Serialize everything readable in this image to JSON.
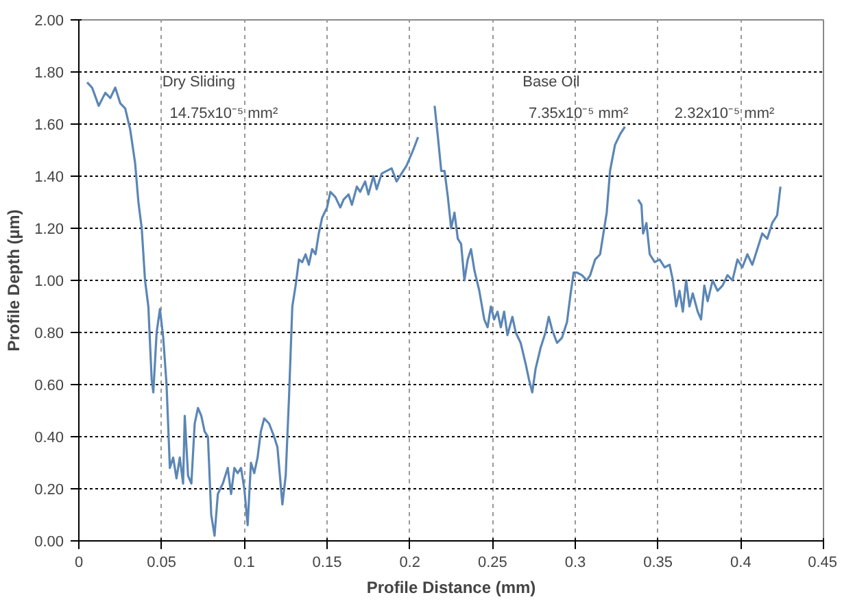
{
  "chart_data": {
    "type": "line",
    "xlabel": "Profile Distance (mm)",
    "ylabel": "Profile Depth (µm)",
    "xlim": [
      0,
      0.45
    ],
    "xticks": [
      0,
      0.05,
      0.1,
      0.15,
      0.2,
      0.25,
      0.3,
      0.35,
      0.4,
      0.45
    ],
    "ylim": [
      0,
      2
    ],
    "yticks": [
      {
        "value": 0,
        "label": "0.00"
      },
      {
        "value": 0.2,
        "label": "0.20"
      },
      {
        "value": 0.4,
        "label": "0.40"
      },
      {
        "value": 0.6,
        "label": "0.60"
      },
      {
        "value": 0.8,
        "label": "0.80"
      },
      {
        "value": 1,
        "label": "1.00"
      },
      {
        "value": 1.2,
        "label": "1.20"
      },
      {
        "value": 1.4,
        "label": "1.40"
      },
      {
        "value": 1.6,
        "label": "1.60"
      },
      {
        "value": 1.8,
        "label": "1.80"
      },
      {
        "value": 2,
        "label": "2.00"
      }
    ],
    "grid": true,
    "marker": "none",
    "line_style": "solid",
    "annotations": [
      "Dry Sliding",
      "14.75x10⁻⁵ mm²",
      "Base Oil",
      "7.35x10⁻⁵ mm²",
      "2.32x10⁻⁵ mm²"
    ],
    "series": [
      {
        "color": "#5b86b5",
        "x": [
          0.005,
          0.008,
          0.012,
          0.016,
          0.019,
          0.022,
          0.025,
          0.028,
          0.031,
          0.034,
          0.036,
          0.038,
          0.04,
          0.042,
          0.044,
          0.045,
          0.047,
          0.049,
          0.051,
          0.053,
          0.055,
          0.057,
          0.059,
          0.061,
          0.063,
          0.064,
          0.066,
          0.068,
          0.07,
          0.072,
          0.074,
          0.076,
          0.078,
          0.08,
          0.082,
          0.084,
          0.087,
          0.09,
          0.092,
          0.094,
          0.096,
          0.098,
          0.1,
          0.102,
          0.104,
          0.106,
          0.108,
          0.11,
          0.112,
          0.115,
          0.118,
          0.12,
          0.123,
          0.125,
          0.127,
          0.129,
          0.131,
          0.133,
          0.135,
          0.137,
          0.139,
          0.141,
          0.143,
          0.145,
          0.147,
          0.15,
          0.152,
          0.155,
          0.158,
          0.16,
          0.163,
          0.165,
          0.168,
          0.17,
          0.173,
          0.175,
          0.178,
          0.18,
          0.183,
          0.186,
          0.189,
          0.192,
          0.195,
          0.198,
          0.202,
          0.205
        ],
        "values": [
          1.76,
          1.74,
          1.67,
          1.72,
          1.7,
          1.74,
          1.68,
          1.66,
          1.58,
          1.45,
          1.3,
          1.2,
          1.0,
          0.9,
          0.62,
          0.57,
          0.8,
          0.89,
          0.78,
          0.6,
          0.28,
          0.32,
          0.24,
          0.32,
          0.22,
          0.48,
          0.25,
          0.22,
          0.45,
          0.51,
          0.48,
          0.42,
          0.4,
          0.1,
          0.02,
          0.18,
          0.22,
          0.28,
          0.18,
          0.28,
          0.26,
          0.28,
          0.2,
          0.06,
          0.3,
          0.26,
          0.32,
          0.42,
          0.47,
          0.45,
          0.4,
          0.36,
          0.14,
          0.25,
          0.55,
          0.9,
          0.98,
          1.08,
          1.07,
          1.1,
          1.06,
          1.12,
          1.1,
          1.18,
          1.24,
          1.28,
          1.34,
          1.32,
          1.28,
          1.31,
          1.33,
          1.29,
          1.36,
          1.34,
          1.38,
          1.33,
          1.4,
          1.35,
          1.41,
          1.42,
          1.43,
          1.38,
          1.41,
          1.44,
          1.5,
          1.55
        ]
      },
      {
        "color": "#5b86b5",
        "x": [
          0.215,
          0.217,
          0.219,
          0.221,
          0.223,
          0.225,
          0.227,
          0.229,
          0.231,
          0.233,
          0.235,
          0.237,
          0.239,
          0.242,
          0.245,
          0.247,
          0.249,
          0.251,
          0.253,
          0.255,
          0.257,
          0.259,
          0.262,
          0.264,
          0.267,
          0.27,
          0.272,
          0.274,
          0.276,
          0.279,
          0.282,
          0.284,
          0.286,
          0.289,
          0.292,
          0.295,
          0.297,
          0.299,
          0.301,
          0.304,
          0.307,
          0.309,
          0.312,
          0.315,
          0.317,
          0.319,
          0.321,
          0.324,
          0.327,
          0.33
        ],
        "values": [
          1.67,
          1.55,
          1.42,
          1.42,
          1.32,
          1.2,
          1.26,
          1.16,
          1.14,
          1.0,
          1.08,
          1.12,
          1.04,
          0.96,
          0.85,
          0.82,
          0.9,
          0.85,
          0.88,
          0.82,
          0.88,
          0.79,
          0.86,
          0.8,
          0.76,
          0.68,
          0.62,
          0.57,
          0.66,
          0.74,
          0.8,
          0.86,
          0.81,
          0.76,
          0.78,
          0.84,
          0.94,
          1.03,
          1.03,
          1.02,
          1.0,
          1.02,
          1.08,
          1.1,
          1.18,
          1.26,
          1.42,
          1.52,
          1.56,
          1.59
        ]
      },
      {
        "color": "#5b86b5",
        "x": [
          0.338,
          0.34,
          0.341,
          0.343,
          0.345,
          0.348,
          0.351,
          0.354,
          0.357,
          0.359,
          0.361,
          0.363,
          0.365,
          0.367,
          0.369,
          0.371,
          0.374,
          0.376,
          0.378,
          0.38,
          0.383,
          0.386,
          0.389,
          0.392,
          0.395,
          0.398,
          0.401,
          0.404,
          0.407,
          0.41,
          0.413,
          0.416,
          0.419,
          0.422,
          0.424
        ],
        "values": [
          1.31,
          1.29,
          1.18,
          1.22,
          1.1,
          1.07,
          1.08,
          1.05,
          1.06,
          1.0,
          0.9,
          0.96,
          0.88,
          1.0,
          0.9,
          0.95,
          0.88,
          0.85,
          0.98,
          0.92,
          1.0,
          0.96,
          0.98,
          1.02,
          1.0,
          1.08,
          1.05,
          1.1,
          1.06,
          1.12,
          1.18,
          1.16,
          1.22,
          1.25,
          1.36
        ]
      }
    ]
  }
}
